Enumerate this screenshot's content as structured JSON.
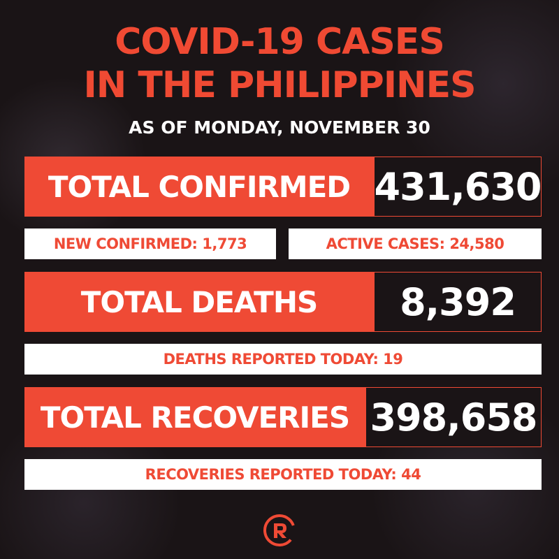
{
  "header": {
    "title_line1": "COVID-19 CASES",
    "title_line2": "IN THE PHILIPPINES",
    "subtitle": "AS OF MONDAY, NOVEMBER 30"
  },
  "confirmed": {
    "label": "TOTAL CONFIRMED",
    "value": "431,630",
    "new_label": "NEW CONFIRMED: 1,773",
    "active_label": "ACTIVE CASES: 24,580"
  },
  "deaths": {
    "label": "TOTAL DEATHS",
    "value": "8,392",
    "today_label": "DEATHS REPORTED TODAY: 19"
  },
  "recoveries": {
    "label": "TOTAL RECOVERIES",
    "value": "398,658",
    "today_label": "RECOVERIES REPORTED TODAY: 44"
  },
  "logo": {
    "icon": "rappler-logo-icon"
  },
  "colors": {
    "accent": "#ef4a35",
    "background": "#1a1416",
    "text_light": "#ffffff"
  }
}
